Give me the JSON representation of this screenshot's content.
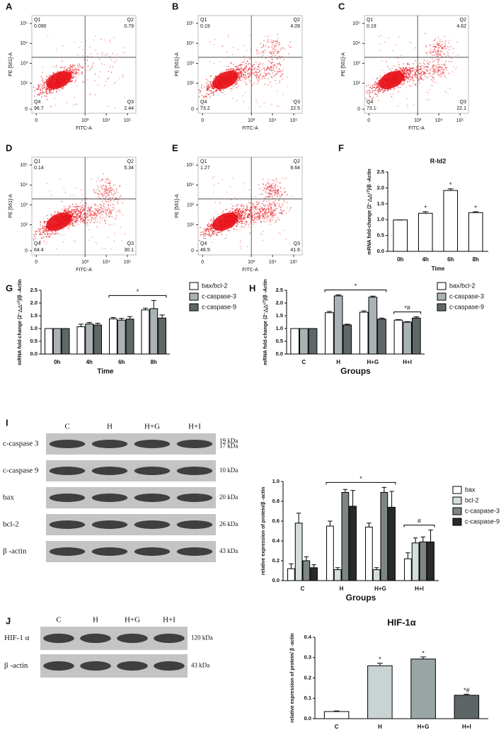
{
  "chart_data": [
    {
      "type": "flow",
      "panel": "A",
      "x_label": "FITC-A",
      "y_label": "PE [561]-A",
      "xlim": [
        -5,
        250000
      ],
      "ylim": [
        -5,
        250000
      ],
      "xticks": [
        0,
        {
          "value": 1000,
          "label": "10³"
        },
        {
          "value": 10000,
          "label": "10⁴"
        },
        {
          "value": 100000,
          "label": "10⁵"
        }
      ],
      "yticks": [
        0,
        {
          "value": 100,
          "label": "10²"
        },
        {
          "value": 1000,
          "label": "10³"
        },
        {
          "value": 10000,
          "label": "10⁴"
        },
        {
          "value": 100000,
          "label": "10⁵"
        }
      ],
      "gate_x": 1000,
      "gate_y": 2000,
      "quadrants": [
        "Q1",
        "Q2",
        "Q3",
        "Q4"
      ],
      "values": [
        0.09,
        0.79,
        2.44,
        96.7
      ],
      "value_labels": [
        "0.090",
        "0.79",
        "2.44",
        "96.7"
      ],
      "color": "#e8141b"
    },
    {
      "type": "flow",
      "panel": "B",
      "x_label": "FITC-A",
      "y_label": "PE [561]-A",
      "xlim": [
        -5,
        250000
      ],
      "ylim": [
        -5,
        250000
      ],
      "xticks": [
        0,
        {
          "value": 1000,
          "label": "10³"
        },
        {
          "value": 10000,
          "label": "10⁴"
        },
        {
          "value": 100000,
          "label": "10⁵"
        }
      ],
      "yticks": [
        0,
        {
          "value": 100,
          "label": "10²"
        },
        {
          "value": 1000,
          "label": "10³"
        },
        {
          "value": 10000,
          "label": "10⁴"
        },
        {
          "value": 100000,
          "label": "10⁵"
        }
      ],
      "gate_x": 1000,
      "gate_y": 2000,
      "quadrants": [
        "Q1",
        "Q2",
        "Q3",
        "Q4"
      ],
      "values": [
        0.19,
        4.09,
        22.5,
        73.2
      ],
      "color": "#e8141b"
    },
    {
      "type": "flow",
      "panel": "C",
      "x_label": "FITC-A",
      "y_label": "PE [561]-A",
      "xlim": [
        -5,
        250000
      ],
      "ylim": [
        -5,
        250000
      ],
      "xticks": [
        0,
        {
          "value": 1000,
          "label": "10³"
        },
        {
          "value": 10000,
          "label": "10⁴"
        },
        {
          "value": 100000,
          "label": "10⁵"
        }
      ],
      "yticks": [
        0,
        {
          "value": 100,
          "label": "10²"
        },
        {
          "value": 1000,
          "label": "10³"
        },
        {
          "value": 10000,
          "label": "10⁴"
        },
        {
          "value": 100000,
          "label": "10⁵"
        }
      ],
      "gate_x": 1000,
      "gate_y": 2000,
      "quadrants": [
        "Q1",
        "Q2",
        "Q3",
        "Q4"
      ],
      "values": [
        0.19,
        4.62,
        22.1,
        73.1
      ],
      "color": "#e8141b"
    },
    {
      "type": "flow",
      "panel": "D",
      "x_label": "FITC-A",
      "y_label": "PE [561]-A",
      "xlim": [
        -5,
        250000
      ],
      "ylim": [
        -5,
        250000
      ],
      "xticks": [
        0,
        {
          "value": 1000,
          "label": "10³"
        },
        {
          "value": 10000,
          "label": "10⁴"
        },
        {
          "value": 100000,
          "label": "10⁵"
        }
      ],
      "yticks": [
        0,
        {
          "value": 100,
          "label": "10²"
        },
        {
          "value": 1000,
          "label": "10³"
        },
        {
          "value": 10000,
          "label": "10⁴"
        },
        {
          "value": 100000,
          "label": "10⁵"
        }
      ],
      "gate_x": 1000,
      "gate_y": 2000,
      "quadrants": [
        "Q1",
        "Q2",
        "Q3",
        "Q4"
      ],
      "values": [
        0.14,
        5.34,
        30.1,
        64.4
      ],
      "color": "#e8141b"
    },
    {
      "type": "flow",
      "panel": "E",
      "x_label": "FITC-A",
      "y_label": "PE [561]-A",
      "xlim": [
        -5,
        250000
      ],
      "ylim": [
        -5,
        250000
      ],
      "xticks": [
        0,
        {
          "value": 1000,
          "label": "10³"
        },
        {
          "value": 10000,
          "label": "10⁴"
        },
        {
          "value": 100000,
          "label": "10⁵"
        }
      ],
      "yticks": [
        0,
        {
          "value": 100,
          "label": "10²"
        },
        {
          "value": 1000,
          "label": "10³"
        },
        {
          "value": 10000,
          "label": "10⁴"
        },
        {
          "value": 100000,
          "label": "10⁵"
        }
      ],
      "gate_x": 1000,
      "gate_y": 2000,
      "quadrants": [
        "Q1",
        "Q2",
        "Q3",
        "Q4"
      ],
      "values": [
        1.27,
        8.64,
        41.6,
        48.5
      ],
      "color": "#e8141b"
    },
    {
      "type": "bar",
      "panel": "F",
      "title": "R-Id2",
      "x_label": "Time",
      "y_label": "mRNA fold-change (2⁻△△ᶜᵀ)/β -Actin",
      "categories": [
        "0h",
        "4h",
        "6h",
        "8h"
      ],
      "values": [
        0.99,
        1.2,
        1.92,
        1.22
      ],
      "errors": [
        0,
        0.05,
        0.05,
        0.03
      ],
      "bar_labels": [
        null,
        "*",
        "*",
        "*"
      ],
      "color": "#ffffff",
      "ylim": [
        0,
        2.5
      ],
      "yticks": [
        {
          "value": 0,
          "label": "0.0"
        },
        0.5,
        {
          "value": 1,
          "label": "1.0"
        },
        1.5,
        {
          "value": 2,
          "label": "2.0"
        },
        2.5
      ]
    },
    {
      "type": "bar",
      "panel": "G",
      "x_label": "Time",
      "y_label": "mRNA fold-change (2⁻△△ᶜᵀ)/β -Actin",
      "categories": [
        "0h",
        "4h",
        "6h",
        "8h"
      ],
      "series": [
        {
          "name": "bax/bcl-2",
          "color": "#ffffff",
          "values": [
            1,
            1.07,
            1.38,
            1.73
          ],
          "errors": [
            0,
            0.1,
            0.05,
            0.07
          ]
        },
        {
          "name": "c-caspase-3",
          "color": "#a9b3b5",
          "values": [
            1,
            1.18,
            1.33,
            1.78
          ],
          "errors": [
            0,
            0.06,
            0.07,
            0.32
          ]
        },
        {
          "name": "c-caspase-9",
          "color": "#5f6768",
          "values": [
            1,
            1.14,
            1.37,
            1.41
          ],
          "errors": [
            0,
            0.07,
            0.1,
            0.12
          ]
        }
      ],
      "brackets": [
        {
          "text": "*",
          "from": "6h",
          "to": "8h"
        }
      ],
      "ylim": [
        0,
        2.5
      ],
      "yticks": [
        {
          "value": 0,
          "label": "0.0"
        },
        0.5,
        {
          "value": 1,
          "label": "1.0"
        },
        1.5,
        {
          "value": 2,
          "label": "2.0"
        },
        2.5
      ]
    },
    {
      "type": "bar",
      "panel": "H",
      "x_label": "Groups",
      "y_label": "mRNA fold-change (2⁻△△ᶜᵀ)/β -Actin",
      "categories": [
        "C",
        "H",
        "H+G",
        "H+I"
      ],
      "series": [
        {
          "name": "bax/bcl-2",
          "color": "#ffffff",
          "values": [
            1,
            1.62,
            1.64,
            1.33
          ],
          "errors": [
            0,
            0.05,
            0.05,
            0.02
          ]
        },
        {
          "name": "c-caspase-3",
          "color": "#a9b3b5",
          "values": [
            1,
            2.28,
            2.23,
            1.25
          ],
          "errors": [
            0,
            0.04,
            0.04,
            0.02
          ]
        },
        {
          "name": "c-caspase-9",
          "color": "#5f6768",
          "values": [
            1,
            1.14,
            1.37,
            1.41
          ],
          "errors": [
            0,
            0.03,
            0.04,
            0.05
          ]
        }
      ],
      "brackets": [
        {
          "text": "*",
          "from": "H",
          "to": "H+G"
        },
        {
          "text": "*#",
          "from": "H+I",
          "to": "H+I"
        }
      ],
      "ylim": [
        0,
        2.5
      ],
      "yticks": [
        {
          "value": 0,
          "label": "0.0"
        },
        0.5,
        {
          "value": 1,
          "label": "1.0"
        },
        1.5,
        {
          "value": 2,
          "label": "2.0"
        },
        2.5
      ]
    },
    {
      "type": "blot",
      "panel": "I",
      "lanes": [
        "C",
        "H",
        "H+G",
        "H+I"
      ],
      "rows": [
        {
          "name": "c-caspase 3",
          "sizes": [
            "19 kDa",
            "17 kDa"
          ]
        },
        {
          "name": "c-caspase 9",
          "sizes": [
            "10 kDa"
          ]
        },
        {
          "name": "bax",
          "sizes": [
            "20 kDa"
          ]
        },
        {
          "name": "bcl-2",
          "sizes": [
            "26 kDa"
          ]
        },
        {
          "name": "β -actin",
          "sizes": [
            "43 kDa"
          ]
        }
      ]
    },
    {
      "type": "bar",
      "x_label": "Groups",
      "y_label": "relative expression of protein/β -actin",
      "categories": [
        "C",
        "H",
        "H+G",
        "H+I"
      ],
      "series": [
        {
          "name": "bax",
          "color": "#ffffff",
          "values": [
            0.12,
            0.55,
            0.54,
            0.22
          ],
          "errors": [
            0.05,
            0.05,
            0.04,
            0.06
          ]
        },
        {
          "name": "bcl-2",
          "color": "#d4dedd",
          "values": [
            0.58,
            0.11,
            0.11,
            0.38
          ],
          "errors": [
            0.1,
            0.02,
            0.02,
            0.05
          ]
        },
        {
          "name": "c-caspase-3",
          "color": "#7d8585",
          "values": [
            0.2,
            0.89,
            0.89,
            0.39
          ],
          "errors": [
            0.04,
            0.03,
            0.05,
            0.05
          ]
        },
        {
          "name": "c-caspase-9",
          "color": "#2a2a2a",
          "values": [
            0.13,
            0.75,
            0.74,
            0.39
          ],
          "errors": [
            0.03,
            0.16,
            0.16,
            0.12
          ]
        }
      ],
      "brackets": [
        {
          "text": "*",
          "from": "H",
          "to": "H+G"
        },
        {
          "text": "#",
          "from": "H+I",
          "to": "H+I"
        }
      ],
      "ylim": [
        0,
        1
      ],
      "yticks": [
        {
          "value": 0,
          "label": "0.0"
        },
        0.2,
        0.4,
        0.6,
        0.8,
        {
          "value": 1,
          "label": "1.0"
        }
      ]
    },
    {
      "type": "blot",
      "panel": "J",
      "lanes": [
        "C",
        "H",
        "H+G",
        "H+I"
      ],
      "rows": [
        {
          "name": "HIF-1 α",
          "sizes": [
            "120 kDa"
          ]
        },
        {
          "name": "β -actin",
          "sizes": [
            "43 kDa"
          ]
        }
      ]
    },
    {
      "type": "bar",
      "title": "HIF-1α",
      "y_label": "relative expression of protein/ β -actin",
      "categories": [
        "C",
        "H",
        "H+G",
        "H+I"
      ],
      "values": [
        0.035,
        0.26,
        0.293,
        0.115
      ],
      "errors": [
        0.003,
        0.012,
        0.01,
        0.005
      ],
      "bar_labels": [
        null,
        "*",
        "*",
        "*#"
      ],
      "colors": [
        "#ffffff",
        "#c8d3d3",
        "#9aa5a6",
        "#5d6667"
      ],
      "ylim": [
        0,
        0.4
      ],
      "yticks": [
        {
          "value": 0,
          "label": "0.0"
        },
        0.1,
        0.2,
        0.3,
        0.4
      ]
    }
  ]
}
